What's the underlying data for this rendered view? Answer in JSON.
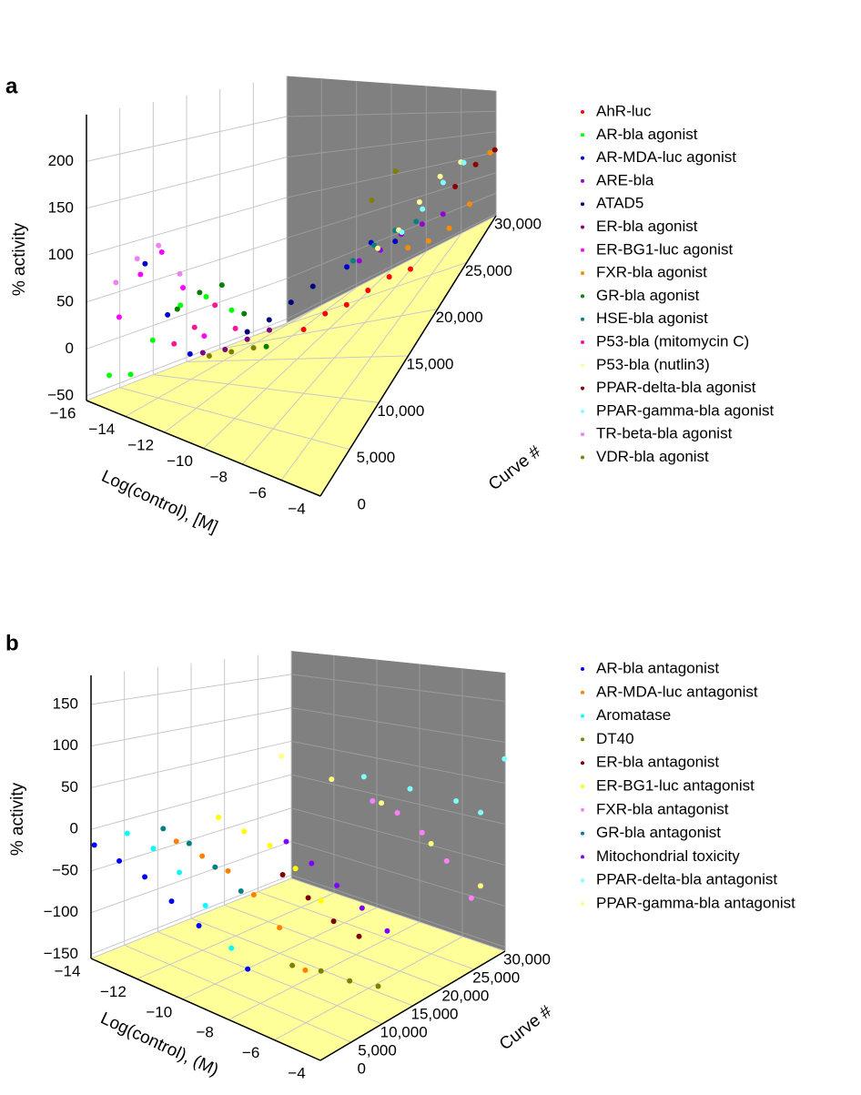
{
  "chart_data": [
    {
      "type": "scatter3d",
      "panel_label": "a",
      "xlabel": "Log(control), [M]",
      "ylabel": "Curve #",
      "zlabel": "% activity",
      "xlim": [
        -16,
        -4
      ],
      "xticks": [
        {
          "value": -16,
          "label": "−16"
        },
        {
          "value": -14,
          "label": "−14"
        },
        {
          "value": -12,
          "label": "−12"
        },
        {
          "value": -10,
          "label": "−10"
        },
        {
          "value": -8,
          "label": "−8"
        },
        {
          "value": -6,
          "label": "−6"
        },
        {
          "value": -4,
          "label": "−4"
        }
      ],
      "ylim": [
        0,
        30000
      ],
      "yticks": [
        0,
        {
          "value": 5000,
          "label": "5,000"
        },
        {
          "value": 10000,
          "label": "10,000"
        },
        {
          "value": 15000,
          "label": "15,000"
        },
        {
          "value": 20000,
          "label": "20,000"
        },
        {
          "value": 25000,
          "label": "25,000"
        },
        {
          "value": 30000,
          "label": "30,000"
        }
      ],
      "zlim": [
        -55,
        250
      ],
      "zticks": [
        {
          "value": -50,
          "label": "−50"
        },
        0,
        50,
        100,
        150,
        200
      ],
      "series": [
        {
          "name": "AhR-luc",
          "color": "#ff0000",
          "x": [
            -10,
            -9,
            -8,
            -7,
            -6,
            -5
          ],
          "y": [
            16000,
            16500,
            17000,
            17500,
            18000,
            18500
          ],
          "values": [
            -20,
            0,
            10,
            30,
            50,
            60
          ]
        },
        {
          "name": "AR-bla agonist",
          "color": "#00ff00",
          "x": [
            -15,
            -14,
            -13,
            -12,
            -11,
            -10
          ],
          "y": [
            500,
            800,
            1200,
            2500,
            3500,
            4500
          ],
          "values": [
            -20,
            -10,
            40,
            90,
            110,
            100
          ]
        },
        {
          "name": "AR-MDA-luc agonist",
          "color": "#0000cd",
          "x": [
            -14,
            -13,
            -12,
            -9,
            -8,
            -7
          ],
          "y": [
            3000,
            3500,
            4000,
            20000,
            21000,
            22000
          ],
          "values": [
            110,
            60,
            20,
            40,
            70,
            60
          ]
        },
        {
          "name": "ARE-bla",
          "color": "#9400d3",
          "x": [
            -9,
            -8,
            -7,
            -6,
            -5
          ],
          "y": [
            22000,
            22500,
            23000,
            23500,
            24000
          ],
          "values": [
            30,
            40,
            60,
            70,
            80
          ]
        },
        {
          "name": "ATAD5",
          "color": "#000080",
          "x": [
            -11,
            -10,
            -9,
            -8
          ],
          "y": [
            10000,
            10500,
            11000,
            11500
          ],
          "values": [
            20,
            40,
            70,
            100
          ]
        },
        {
          "name": "ER-bla agonist",
          "color": "#800080",
          "x": [
            -12,
            -11,
            -10,
            -9
          ],
          "y": [
            6000,
            6500,
            7000,
            7500
          ],
          "values": [
            10,
            20,
            40,
            60
          ]
        },
        {
          "name": "ER-BG1-luc agonist",
          "color": "#ff00ff",
          "x": [
            -15,
            -14,
            -13,
            -12,
            -11
          ],
          "y": [
            2000,
            2300,
            2600,
            2900,
            3200
          ],
          "values": [
            40,
            100,
            140,
            110,
            60
          ]
        },
        {
          "name": "FXR-bla agonist",
          "color": "#ff8c00",
          "x": [
            -8,
            -7,
            -6,
            -5,
            -4
          ],
          "y": [
            27000,
            27500,
            28000,
            28500,
            29000
          ],
          "values": [
            -10,
            -15,
            -10,
            20,
            120
          ]
        },
        {
          "name": "GR-bla agonist",
          "color": "#008000",
          "x": [
            -13,
            -12,
            -11,
            -10,
            -9
          ],
          "y": [
            5000,
            5500,
            6000,
            6500,
            7000
          ],
          "values": [
            60,
            90,
            110,
            80,
            40
          ]
        },
        {
          "name": "HSE-bla agonist",
          "color": "#008080",
          "x": [
            -9,
            -8,
            -7,
            -6
          ],
          "y": [
            21000,
            21500,
            22000,
            22500
          ],
          "values": [
            40,
            60,
            80,
            90
          ]
        },
        {
          "name": "P53-bla (mitomycin C)",
          "color": "#ff1493",
          "x": [
            -13,
            -12,
            -11,
            -10
          ],
          "y": [
            4500,
            4700,
            4900,
            5100
          ],
          "values": [
            20,
            50,
            90,
            70
          ]
        },
        {
          "name": "P53-bla (nutlin3)",
          "color": "#ffff99",
          "x": [
            -9,
            -8,
            -7,
            -6,
            -5
          ],
          "y": [
            25000,
            25500,
            26000,
            26500,
            27000
          ],
          "values": [
            20,
            40,
            80,
            120,
            140
          ]
        },
        {
          "name": "PPAR-delta-bla agonist",
          "color": "#8b0000",
          "x": [
            -6,
            -5,
            -4
          ],
          "y": [
            29000,
            29500,
            29800
          ],
          "values": [
            60,
            90,
            110
          ]
        },
        {
          "name": "PPAR-gamma-bla agonist",
          "color": "#7fffff",
          "x": [
            -8,
            -7,
            -6,
            -5
          ],
          "y": [
            26000,
            26500,
            27000,
            27500
          ],
          "values": [
            30,
            60,
            100,
            130
          ]
        },
        {
          "name": "TR-beta-bla agonist",
          "color": "#ee82ee",
          "x": [
            -15,
            -14,
            -13,
            -12
          ],
          "y": [
            1500,
            1800,
            2100,
            2400
          ],
          "values": [
            80,
            120,
            150,
            130
          ]
        },
        {
          "name": "VDR-bla agonist",
          "color": "#808000",
          "x": [
            -12,
            -11,
            -10,
            -9,
            -8
          ],
          "y": [
            7000,
            7500,
            8000,
            24000,
            25000
          ],
          "values": [
            0,
            10,
            20,
            110,
            150
          ]
        }
      ]
    },
    {
      "type": "scatter3d",
      "panel_label": "b",
      "xlabel": "Log(control), (M)",
      "ylabel": "Curve #",
      "zlabel": "% activity",
      "xlim": [
        -14,
        -4
      ],
      "xticks": [
        {
          "value": -14,
          "label": "−14"
        },
        {
          "value": -12,
          "label": "−12"
        },
        {
          "value": -10,
          "label": "−10"
        },
        {
          "value": -8,
          "label": "−8"
        },
        {
          "value": -6,
          "label": "−6"
        },
        {
          "value": -4,
          "label": "−4"
        }
      ],
      "ylim": [
        0,
        30000
      ],
      "yticks": [
        0,
        {
          "value": 5000,
          "label": "5,000"
        },
        {
          "value": 10000,
          "label": "10,000"
        },
        {
          "value": 15000,
          "label": "15,000"
        },
        {
          "value": 20000,
          "label": "20,000"
        },
        {
          "value": 25000,
          "label": "25,000"
        },
        {
          "value": 30000,
          "label": "30,000"
        }
      ],
      "zlim": [
        -155,
        185
      ],
      "zticks": [
        {
          "value": -150,
          "label": "−150"
        },
        {
          "value": -100,
          "label": "−100"
        },
        {
          "value": -50,
          "label": "−50"
        },
        0,
        50,
        100,
        150
      ],
      "series": [
        {
          "name": "AR-bla antagonist",
          "color": "#0000ff",
          "x": [
            -14,
            -13,
            -12,
            -11,
            -10,
            -8
          ],
          "y": [
            500,
            800,
            1200,
            1800,
            2500,
            3000
          ],
          "values": [
            -20,
            -30,
            -40,
            -60,
            -80,
            -110
          ]
        },
        {
          "name": "AR-MDA-luc antagonist",
          "color": "#ff8000",
          "x": [
            -12,
            -11,
            -10,
            -9,
            -8,
            -7
          ],
          "y": [
            6000,
            6500,
            7000,
            7500,
            8000,
            8500
          ],
          "values": [
            -10,
            -20,
            -30,
            -50,
            -80,
            -120
          ]
        },
        {
          "name": "Aromatase",
          "color": "#00ffff",
          "x": [
            -13,
            -12,
            -11,
            -10,
            -9
          ],
          "y": [
            2000,
            2500,
            3000,
            3500,
            4000
          ],
          "values": [
            0,
            -10,
            -30,
            -60,
            -100
          ]
        },
        {
          "name": "DT40",
          "color": "#808000",
          "x": [
            -8,
            -7,
            -6,
            -5
          ],
          "y": [
            10000,
            11000,
            12000,
            13000
          ],
          "values": [
            -130,
            -130,
            -135,
            -135
          ]
        },
        {
          "name": "ER-bla antagonist",
          "color": "#800000",
          "x": [
            -9,
            -8,
            -7,
            -6
          ],
          "y": [
            12000,
            12500,
            13000,
            13500
          ],
          "values": [
            -40,
            -60,
            -80,
            -90
          ]
        },
        {
          "name": "ER-BG1-luc antagonist",
          "color": "#ffff00",
          "x": [
            -11,
            -10,
            -9,
            -8,
            -7
          ],
          "y": [
            9000,
            9500,
            10000,
            10500,
            11000
          ],
          "values": [
            20,
            10,
            0,
            -20,
            -50
          ]
        },
        {
          "name": "FXR-bla antagonist",
          "color": "#ff80ff",
          "x": [
            -9,
            -8,
            -7,
            -6,
            -5
          ],
          "y": [
            26000,
            26500,
            27000,
            27500,
            28000
          ],
          "values": [
            10,
            0,
            -20,
            -50,
            -90
          ]
        },
        {
          "name": "GR-bla antagonist",
          "color": "#008080",
          "x": [
            -12,
            -11,
            -10,
            -9
          ],
          "y": [
            4000,
            4500,
            5000,
            5500
          ],
          "values": [
            10,
            0,
            -20,
            -40
          ]
        },
        {
          "name": "Mitochondrial toxicity",
          "color": "#8000ff",
          "x": [
            -10,
            -9,
            -8,
            -7,
            -6
          ],
          "y": [
            16000,
            16500,
            17000,
            17500,
            18000
          ],
          "values": [
            -20,
            -40,
            -60,
            -80,
            -100
          ]
        },
        {
          "name": "PPAR-delta-bla antagonist",
          "color": "#80ffff",
          "x": [
            -10,
            -8,
            -6,
            -5,
            -4
          ],
          "y": [
            28000,
            28500,
            29000,
            29500,
            29900
          ],
          "values": [
            30,
            25,
            20,
            10,
            80
          ]
        },
        {
          "name": "PPAR-gamma-bla antagonist",
          "color": "#ffff80",
          "x": [
            -12,
            -10,
            -8,
            -6,
            -4
          ],
          "y": [
            22000,
            23000,
            24000,
            25000,
            26000
          ],
          "values": [
            60,
            40,
            20,
            -20,
            -60
          ]
        }
      ]
    }
  ]
}
